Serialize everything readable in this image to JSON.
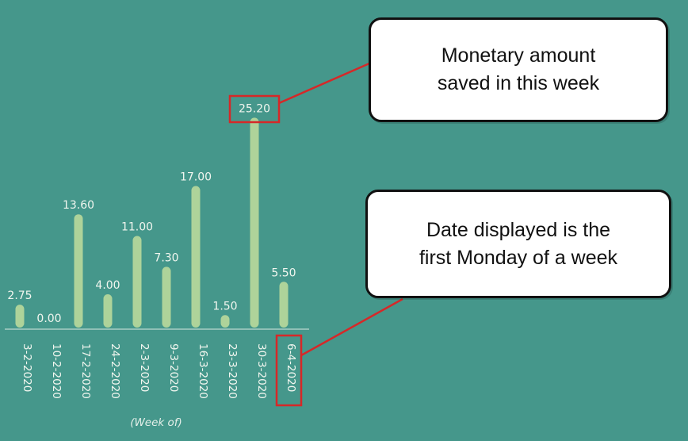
{
  "chart_data": {
    "type": "bar",
    "categories": [
      "3-2-2020",
      "10-2-2020",
      "17-2-2020",
      "24-2-2020",
      "2-3-2020",
      "9-3-2020",
      "16-3-2020",
      "23-3-2020",
      "30-3-2020",
      "6-4-2020"
    ],
    "values": [
      2.75,
      0.0,
      13.6,
      4.0,
      11.0,
      7.3,
      17.0,
      1.5,
      25.2,
      5.5
    ],
    "value_labels": [
      "2.75",
      "0.00",
      "13.60",
      "4.00",
      "11.00",
      "7.30",
      "17.00",
      "1.50",
      "25.20",
      "5.50"
    ],
    "xlabel": "(Week of)",
    "ylabel": "",
    "title": "",
    "grid": false,
    "legend": "none"
  },
  "annotations": {
    "amount_callout": "Monetary amount\nsaved in this week",
    "date_callout": "Date displayed is the\nfirst Monday of a week"
  },
  "colors": {
    "background": "#45978b",
    "bar": "#aed39a",
    "text": "#f1f6ef",
    "highlight": "#d62828",
    "callout_bg": "#ffffff",
    "callout_border": "#111111"
  }
}
